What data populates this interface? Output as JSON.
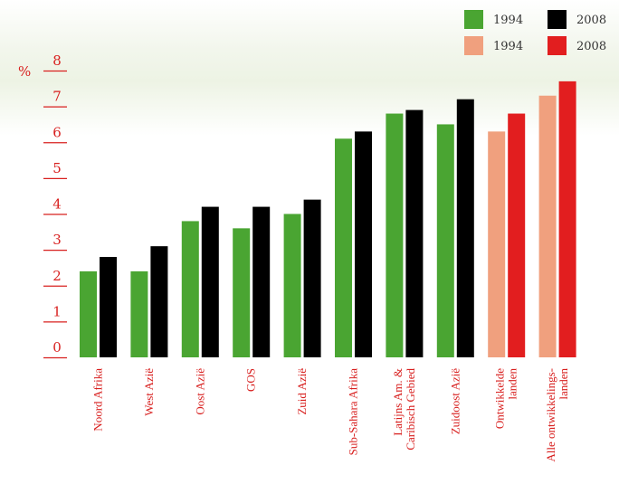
{
  "chart_data": {
    "type": "bar",
    "y_unit": "%",
    "ylim": [
      0,
      8
    ],
    "yticks": [
      "0",
      "1",
      "2",
      "3",
      "4",
      "5",
      "6",
      "7",
      "8"
    ],
    "categories": [
      [
        "Noord Afrika"
      ],
      [
        "West Azië"
      ],
      [
        "Oost Azië"
      ],
      [
        "GOS"
      ],
      [
        "Zuid Azië"
      ],
      [
        "Sub-Sahara Afrika"
      ],
      [
        "Latijns Am. &",
        "Caribisch Gebied"
      ],
      [
        "Zuidoost Azië"
      ],
      [
        "Ontwikkelde",
        "landen"
      ],
      [
        "Alle ontwikkelings-",
        "landen"
      ]
    ],
    "series": [
      {
        "name": "1994",
        "values": [
          2.4,
          2.4,
          3.8,
          3.6,
          4.0,
          6.1,
          6.8,
          6.5,
          6.3,
          7.3
        ]
      },
      {
        "name": "2008",
        "values": [
          2.8,
          3.1,
          4.2,
          4.2,
          4.4,
          6.3,
          6.9,
          7.2,
          6.8,
          7.7
        ]
      }
    ],
    "colors": {
      "regions_1994": "#4aa532",
      "regions_2008": "#000000",
      "aggregates_1994": "#f0a07e",
      "aggregates_2008": "#e21e1f",
      "axis": "#d8201f"
    },
    "aggregate_categories": [
      8,
      9
    ],
    "legend": {
      "placement": "top-right",
      "items": [
        {
          "label": "1994",
          "color": "#4aa532"
        },
        {
          "label": "2008",
          "color": "#000000"
        },
        {
          "label": "1994",
          "color": "#f0a07e"
        },
        {
          "label": "2008",
          "color": "#e21e1f"
        }
      ]
    }
  }
}
